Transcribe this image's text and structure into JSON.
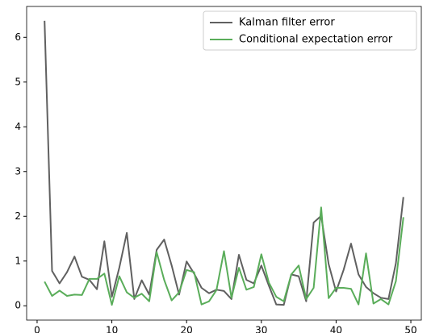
{
  "chart_data": {
    "type": "line",
    "x": [
      1,
      2,
      3,
      4,
      5,
      6,
      7,
      8,
      9,
      10,
      11,
      12,
      13,
      14,
      15,
      16,
      17,
      18,
      19,
      20,
      21,
      22,
      23,
      24,
      25,
      26,
      27,
      28,
      29,
      30,
      31,
      32,
      33,
      34,
      35,
      36,
      37,
      38,
      39,
      40,
      41,
      42,
      43,
      44,
      45,
      46,
      47,
      48,
      49
    ],
    "series": [
      {
        "name": "Kalman filter error",
        "color": "#606060",
        "values": [
          6.37,
          0.78,
          0.5,
          0.75,
          1.1,
          0.65,
          0.58,
          0.37,
          1.44,
          0.2,
          0.85,
          1.63,
          0.15,
          0.57,
          0.25,
          1.25,
          1.48,
          0.9,
          0.25,
          0.99,
          0.72,
          0.4,
          0.28,
          0.36,
          0.33,
          0.15,
          1.14,
          0.58,
          0.5,
          0.9,
          0.45,
          0.03,
          0.02,
          0.7,
          0.66,
          0.1,
          1.86,
          2.01,
          0.93,
          0.32,
          0.8,
          1.39,
          0.7,
          0.42,
          0.28,
          0.18,
          0.15,
          0.95,
          2.43
        ]
      },
      {
        "name": "Conditional expectation error",
        "color": "#5aad5a",
        "values": [
          0.54,
          0.22,
          0.34,
          0.22,
          0.25,
          0.24,
          0.6,
          0.6,
          0.72,
          0.02,
          0.66,
          0.3,
          0.18,
          0.27,
          0.1,
          1.2,
          0.58,
          0.12,
          0.3,
          0.8,
          0.75,
          0.03,
          0.1,
          0.35,
          1.22,
          0.18,
          0.85,
          0.36,
          0.42,
          1.15,
          0.52,
          0.2,
          0.1,
          0.7,
          0.9,
          0.15,
          0.4,
          2.2,
          0.17,
          0.4,
          0.4,
          0.38,
          0.03,
          1.17,
          0.05,
          0.15,
          0.03,
          0.55,
          1.98
        ]
      }
    ],
    "xlim": [
      -1.4,
      51.4
    ],
    "xticks": [
      0,
      10,
      20,
      30,
      40,
      50
    ],
    "ylim": [
      -0.32,
      6.69
    ],
    "yticks": [
      0,
      1,
      2,
      3,
      4,
      5,
      6
    ],
    "legend": "upper right"
  }
}
